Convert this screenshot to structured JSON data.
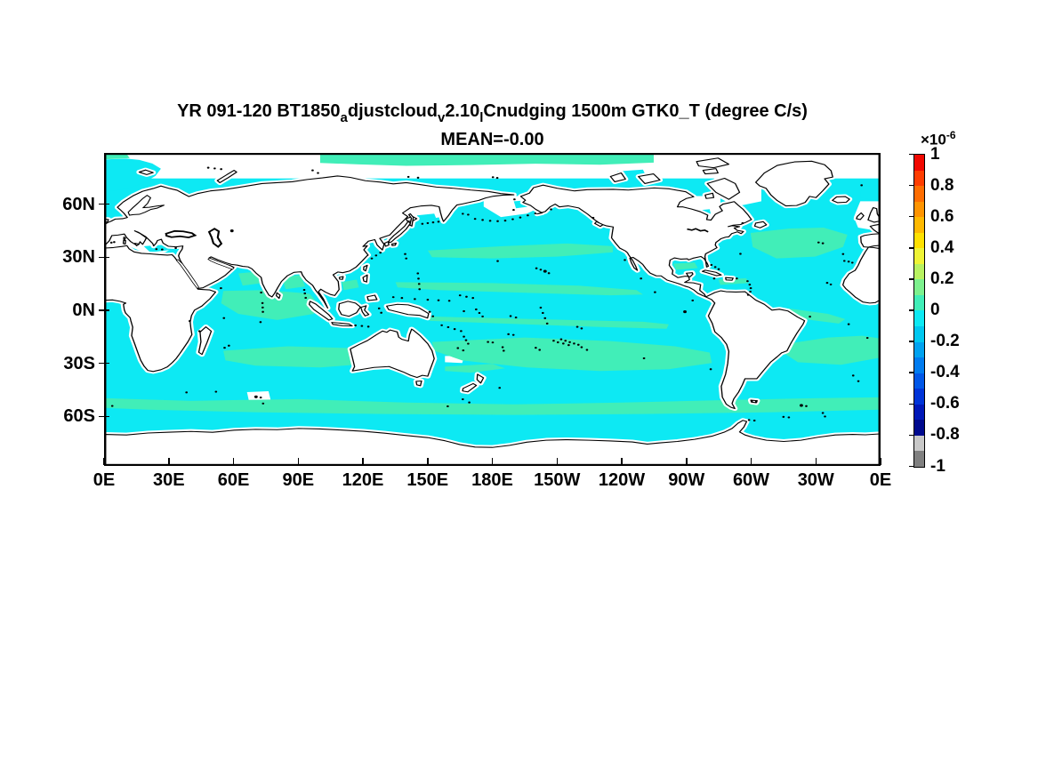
{
  "figure": {
    "title_segments": [
      {
        "t": "YR 091-120 BT1850",
        "sub": false
      },
      {
        "t": "a",
        "sub": true
      },
      {
        "t": "djustcloud",
        "sub": false
      },
      {
        "t": "v",
        "sub": true
      },
      {
        "t": "2.10",
        "sub": false
      },
      {
        "t": "l",
        "sub": true
      },
      {
        "t": "Cnudging 1500m GTK0_T (degree C/s)",
        "sub": false
      }
    ],
    "subtitle": "MEAN=-0.00"
  },
  "axes": {
    "x_tick_labels": [
      "0E",
      "30E",
      "60E",
      "90E",
      "120E",
      "150E",
      "180E",
      "150W",
      "120W",
      "90W",
      "60W",
      "30W",
      "0E"
    ],
    "y_tick_labels": [
      "60N",
      "30N",
      "0N",
      "30S",
      "60S"
    ]
  },
  "colorbar": {
    "multiplier": "×10",
    "exponent": "-6",
    "tick_labels": [
      "1",
      "0.8",
      "0.6",
      "0.4",
      "0.2",
      "0",
      "-0.2",
      "-0.4",
      "-0.6",
      "-0.8",
      "-1"
    ],
    "segment_colors_top_to_bottom": [
      "#F10800",
      "#FF3D00",
      "#FF6D00",
      "#FF9400",
      "#FFB900",
      "#FFE100",
      "#EFF436",
      "#B8F261",
      "#7DF18E",
      "#41EEB8",
      "#0DE9F3",
      "#00C8F0",
      "#00A2F0",
      "#007CF0",
      "#0057E8",
      "#0034D8",
      "#0018B8",
      "#000A8E",
      "#C8C8C8",
      "#808080"
    ]
  },
  "map_colors": {
    "ocean_negative_band": "#0DE9F3",
    "ocean_positive_band": "#41EEB8",
    "land": "#FFFFFF",
    "coastline": "#000000",
    "masked_sea": "#FFFFFF"
  },
  "chart_data": {
    "type": "heatmap",
    "title": "YR 091-120 BT1850_adjustcloud_v2.10_lCnudging 1500m GTK0_T (degree C/s)",
    "subtitle": "MEAN=-0.00",
    "mean_value": "-0.00",
    "units": "degree C/s",
    "depth_level": "1500m",
    "scale_factor": 1e-06,
    "colorbar": {
      "min": -1,
      "max": 1,
      "n_levels": 20,
      "level_step": 0.1,
      "tick_values": [
        1,
        0.8,
        0.6,
        0.4,
        0.2,
        0,
        -0.2,
        -0.4,
        -0.6,
        -0.8,
        -1
      ],
      "tick_labels": [
        "1",
        "0.8",
        "0.6",
        "0.4",
        "0.2",
        "0",
        "-0.2",
        "-0.4",
        "-0.6",
        "-0.8",
        "-1"
      ],
      "units_multiplier": "×10^-6"
    },
    "x_axis": {
      "label_type": "longitude",
      "tick_labels": [
        "0E",
        "30E",
        "60E",
        "90E",
        "120E",
        "150E",
        "180E",
        "150W",
        "120W",
        "90W",
        "60W",
        "30W",
        "0E"
      ],
      "range_deg": [
        0,
        360
      ],
      "orientation": "pacific-centered"
    },
    "y_axis": {
      "label_type": "latitude",
      "tick_labels": [
        "60N",
        "30N",
        "0N",
        "30S",
        "60S"
      ],
      "range_deg": [
        -88,
        89
      ]
    },
    "grid": false,
    "legend_position": "right colorbar",
    "field_summary": "Global ocean temperature-tendency map at 1500 m. Nearly all ocean points fall in the two levels adjacent to zero: cyan (0 to -0.1e-6 degC/s) dominates the basins, pale green (0 to +0.1e-6 degC/s) forms zonal bands in the subtropical gyres, equatorial Indian/Pacific, central North Atlantic, the Southern Ocean near 55S and the Arctic near 85N. Land, shelves and marginal seas (Mediterranean, Okhotsk, Bering, Hudson Bay, Baffin Bay, Arctic) are masked white."
  }
}
